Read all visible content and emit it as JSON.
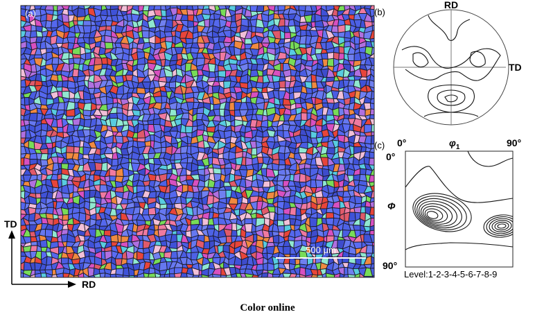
{
  "figure": {
    "panel_a": {
      "label": "(a)",
      "scale_bar": "500 μm",
      "axes": {
        "vertical": "TD",
        "horizontal": "RD"
      }
    },
    "panel_b": {
      "label": "(b)",
      "top": "RD",
      "right": "TD"
    },
    "panel_c": {
      "label": "(c)",
      "x_start": "0°",
      "x_axis": {
        "symbol": "φ",
        "subscript": "1"
      },
      "x_end": "90°",
      "y_start": "0°",
      "y_axis": "Φ",
      "y_end": "90°",
      "levels": "Level:1-2-3-4-5-6-7-8-9"
    },
    "caption": "Color online"
  }
}
